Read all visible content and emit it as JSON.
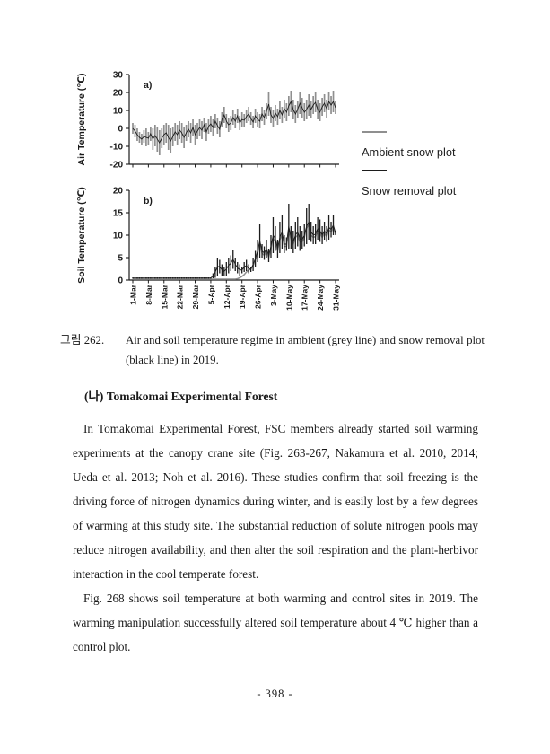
{
  "page": {
    "number_label": "- 398 -"
  },
  "figure": {
    "panel_a_label": "a)",
    "panel_b_label": "b)",
    "legend": [
      {
        "label": "Ambient snow plot",
        "color": "#8f8f8f"
      },
      {
        "label": "Snow removal plot",
        "color": "#1c1c1c"
      }
    ],
    "caption_label": "그림 262.",
    "caption_text": "Air and soil temperature regime in ambient (grey line) and snow removal plot (black line) in 2019."
  },
  "section": {
    "heading": "(나) Tomakomai Experimental Forest",
    "paragraphs": [
      "In Tomakomai Experimental Forest, FSC members already started soil warming experiments at the canopy crane site (Fig. 263-267, Nakamura et al. 2010, 2014; Ueda et al. 2013; Noh et al. 2016). These studies confirm that soil freezing is the driving force of nitrogen dynamics during winter, and is easily lost by a few degrees of warming at this study site. The substantial reduction of solute nitrogen pools may reduce nitrogen availability, and then alter the soil respiration and the plant-herbivor interaction in the cool temperate forest.",
      "Fig. 268 shows soil temperature at both warming and control sites in 2019. The warming manipulation successfully altered soil temperature about 4 ℃ higher than a control plot."
    ]
  },
  "chart_data": [
    {
      "type": "line",
      "panel": "a",
      "title": "",
      "xlabel": "",
      "ylabel": "Air Temperature (℃)",
      "ylim": [
        -20,
        30
      ],
      "yticks": [
        30,
        20,
        10,
        0,
        -10,
        -20
      ],
      "x_range": "daily, 1-Mar to 31-May 2019 (92 days)",
      "x_tick_days": [
        0,
        7,
        14,
        21,
        28,
        35,
        42,
        49,
        56,
        63,
        70,
        77,
        84,
        91
      ],
      "xticklabels_shown": false,
      "note": "daily min–max range bars; ambient (grey) and snow removal (black) series overlap almost completely",
      "series": [
        {
          "name": "Ambient snow plot",
          "color": "#8f8f8f",
          "style": "daily range bars"
        },
        {
          "name": "Snow removal plot",
          "color": "#1c1c1c",
          "style": "daily mean line"
        }
      ],
      "daily_range": {
        "hi": [
          3,
          2,
          0,
          -2,
          -3,
          -1,
          0,
          -2,
          1,
          0,
          2,
          1,
          -1,
          0,
          2,
          3,
          2,
          0,
          1,
          3,
          2,
          4,
          3,
          1,
          2,
          4,
          3,
          5,
          2,
          3,
          5,
          4,
          6,
          3,
          5,
          7,
          5,
          8,
          6,
          4,
          9,
          12,
          8,
          6,
          7,
          10,
          8,
          11,
          7,
          9,
          8,
          10,
          12,
          9,
          7,
          11,
          9,
          8,
          12,
          10,
          14,
          20,
          12,
          10,
          13,
          11,
          15,
          12,
          16,
          14,
          18,
          21,
          16,
          13,
          15,
          20,
          17,
          14,
          16,
          19,
          15,
          18,
          20,
          16,
          14,
          17,
          19,
          16,
          20,
          18,
          21,
          15
        ],
        "lo": [
          -3,
          -5,
          -7,
          -8,
          -9,
          -8,
          -10,
          -9,
          -7,
          -12,
          -10,
          -13,
          -15,
          -11,
          -9,
          -8,
          -12,
          -14,
          -10,
          -7,
          -9,
          -6,
          -8,
          -11,
          -7,
          -5,
          -8,
          -4,
          -9,
          -6,
          -4,
          -6,
          -2,
          -7,
          -3,
          -2,
          -4,
          0,
          -3,
          -5,
          1,
          3,
          0,
          -2,
          -1,
          2,
          0,
          3,
          -1,
          1,
          1,
          3,
          4,
          2,
          0,
          3,
          1,
          0,
          4,
          2,
          5,
          7,
          3,
          1,
          4,
          2,
          5,
          3,
          6,
          4,
          7,
          9,
          5,
          3,
          6,
          8,
          6,
          4,
          5,
          7,
          6,
          8,
          9,
          5,
          4,
          7,
          9,
          6,
          10,
          8,
          9,
          8
        ]
      }
    },
    {
      "type": "line",
      "panel": "b",
      "title": "",
      "xlabel": "",
      "ylabel": "Soil Temperature (℃)",
      "ylim": [
        0,
        20
      ],
      "yticks": [
        20,
        15,
        10,
        5,
        0
      ],
      "x_range": "daily, 1-Mar to 31-May 2019 (92 days)",
      "x_tick_days": [
        0,
        7,
        14,
        21,
        28,
        35,
        42,
        49,
        56,
        63,
        70,
        77,
        84,
        91
      ],
      "xticklabels": [
        "1-Mar",
        "8-Mar",
        "15-Mar",
        "22-Mar",
        "29-Mar",
        "5-Apr",
        "12-Apr",
        "19-Apr",
        "26-Apr",
        "3-May",
        "10-May",
        "17-May",
        "24-May",
        "31-May"
      ],
      "note": "snow removal plot (black) warms from early April; ambient plot (grey) stays near 0 ℃ until mid/late April, then both converge",
      "series": [
        {
          "name": "Ambient snow plot",
          "color": "#8f8f8f",
          "style": "daily mean line",
          "values": [
            0.2,
            0.2,
            0.2,
            0.2,
            0.2,
            0.2,
            0.2,
            0.2,
            0.2,
            0.2,
            0.2,
            0.2,
            0.2,
            0.2,
            0.2,
            0.2,
            0.2,
            0.2,
            0.2,
            0.2,
            0.2,
            0.2,
            0.2,
            0.2,
            0.2,
            0.2,
            0.2,
            0.2,
            0.2,
            0.2,
            0.2,
            0.2,
            0.2,
            0.2,
            0.2,
            0.2,
            0.2,
            0.2,
            0.2,
            0.2,
            0.2,
            0.2,
            0.2,
            0.2,
            0.2,
            0.2,
            0.2,
            0.3,
            0.5,
            0.8,
            1.2,
            1.8,
            2.2,
            2.5,
            3.2,
            4.5,
            6,
            8,
            6,
            5.5,
            6.5,
            5,
            7,
            9.5,
            8.5,
            6.5,
            9,
            10,
            7.5,
            7.5,
            11.5,
            9,
            8,
            9.5,
            10,
            8.5,
            8.5,
            9.5,
            11.5,
            12.5,
            10,
            9.5,
            9.7,
            11,
            10.5,
            9.5,
            10.5,
            9.7,
            11.2,
            10.7,
            11.7,
            10.3
          ]
        },
        {
          "name": "Snow removal plot",
          "color": "#1c1c1c",
          "style": "daily range bars + mean line",
          "lo": [
            0.3,
            0.3,
            0.3,
            0.3,
            0.3,
            0.3,
            0.3,
            0.3,
            0.3,
            0.3,
            0.3,
            0.3,
            0.3,
            0.3,
            0.3,
            0.3,
            0.3,
            0.3,
            0.3,
            0.3,
            0.3,
            0.3,
            0.3,
            0.3,
            0.3,
            0.3,
            0.3,
            0.3,
            0.3,
            0.3,
            0.3,
            0.3,
            0.3,
            0.3,
            0.3,
            0.3,
            0.4,
            0.5,
            1,
            1.5,
            1,
            0.8,
            1,
            1.5,
            2,
            2.5,
            2,
            1.5,
            1,
            1.5,
            1.8,
            2,
            1.5,
            1.8,
            2,
            3,
            4,
            5,
            5,
            4.5,
            5,
            4,
            5,
            6,
            6.5,
            5,
            6,
            7,
            6,
            6.5,
            7,
            7,
            6,
            7,
            7.5,
            6.5,
            7,
            7.5,
            8,
            9,
            8.5,
            8,
            8,
            9,
            8.5,
            8,
            9,
            8.5,
            9,
            9.5,
            10,
            10
          ],
          "hi": [
            0.6,
            0.6,
            0.6,
            0.6,
            0.6,
            0.6,
            0.6,
            0.6,
            0.6,
            0.6,
            0.6,
            0.6,
            0.6,
            0.6,
            0.6,
            0.6,
            0.6,
            0.6,
            0.6,
            0.6,
            0.6,
            0.6,
            0.6,
            0.6,
            0.6,
            0.6,
            0.6,
            0.6,
            0.6,
            0.6,
            0.6,
            0.6,
            0.6,
            0.6,
            0.6,
            0.6,
            1.5,
            3,
            5,
            4.5,
            3.5,
            3,
            4,
            5,
            5.5,
            6.8,
            5,
            4,
            3.5,
            3,
            4,
            4.5,
            3.5,
            3,
            5,
            6.5,
            9,
            12.5,
            8,
            7.5,
            9,
            7,
            10,
            14,
            12,
            9,
            13,
            14.5,
            10,
            9.5,
            17,
            12,
            11,
            13,
            14,
            12,
            11,
            12.5,
            16,
            17,
            13,
            12,
            12.5,
            14,
            13.5,
            12,
            13,
            12,
            14.5,
            13,
            14.5,
            11
          ]
        }
      ]
    }
  ]
}
